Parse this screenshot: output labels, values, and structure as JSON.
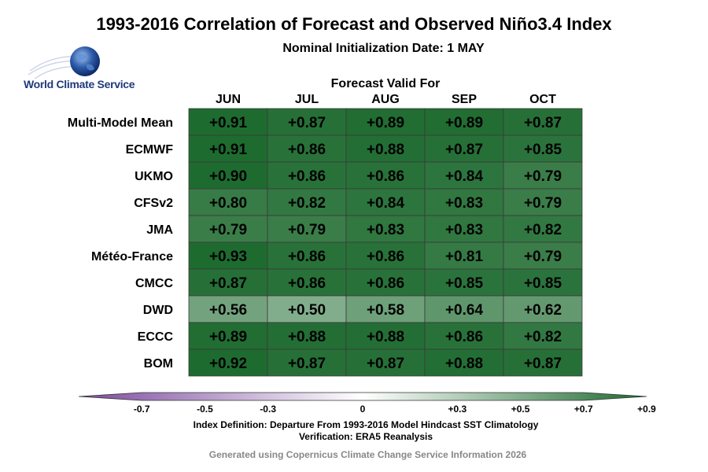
{
  "header": {
    "title": "1993-2016 Correlation of Forecast and Observed Niño3.4 Index",
    "subtitle": "Nominal Initialization Date: 1 MAY"
  },
  "logo": {
    "text": "World Climate Service",
    "icon": "globe-icon"
  },
  "chart_data": {
    "type": "heatmap",
    "title": "1993-2016 Correlation of Forecast and Observed Niño3.4 Index",
    "subtitle": "Nominal Initialization Date: 1 MAY",
    "xlabel": "Forecast Valid For",
    "columns": [
      "JUN",
      "JUL",
      "AUG",
      "SEP",
      "OCT"
    ],
    "rows": [
      "Multi-Model Mean",
      "ECMWF",
      "UKMO",
      "CFSv2",
      "JMA",
      "Météo-France",
      "CMCC",
      "DWD",
      "ECCC",
      "BOM"
    ],
    "values": [
      [
        0.91,
        0.87,
        0.89,
        0.89,
        0.87
      ],
      [
        0.91,
        0.86,
        0.88,
        0.87,
        0.85
      ],
      [
        0.9,
        0.86,
        0.86,
        0.84,
        0.79
      ],
      [
        0.8,
        0.82,
        0.84,
        0.83,
        0.79
      ],
      [
        0.79,
        0.79,
        0.83,
        0.83,
        0.82
      ],
      [
        0.93,
        0.86,
        0.86,
        0.81,
        0.79
      ],
      [
        0.87,
        0.86,
        0.86,
        0.85,
        0.85
      ],
      [
        0.56,
        0.5,
        0.58,
        0.64,
        0.62
      ],
      [
        0.89,
        0.88,
        0.88,
        0.86,
        0.82
      ],
      [
        0.92,
        0.87,
        0.87,
        0.88,
        0.87
      ]
    ],
    "colorbar": {
      "range": [
        -0.9,
        0.9
      ],
      "ticks": [
        -0.7,
        -0.5,
        -0.3,
        0,
        0.3,
        0.5,
        0.7,
        0.9
      ],
      "tick_labels": [
        "-0.7",
        "-0.5",
        "-0.3",
        "0",
        "+0.3",
        "+0.5",
        "+0.7",
        "+0.9"
      ],
      "negative_color": "#7b4a9e",
      "zero_color": "#ffffff",
      "positive_color": "#1e6b30"
    }
  },
  "footer": {
    "definition": "Index Definition: Departure From 1993-2016 Model Hindcast SST Climatology",
    "verification": "Verification: ERA5 Reanalysis",
    "credit": "Generated using Copernicus Climate Change Service Information 2026"
  }
}
